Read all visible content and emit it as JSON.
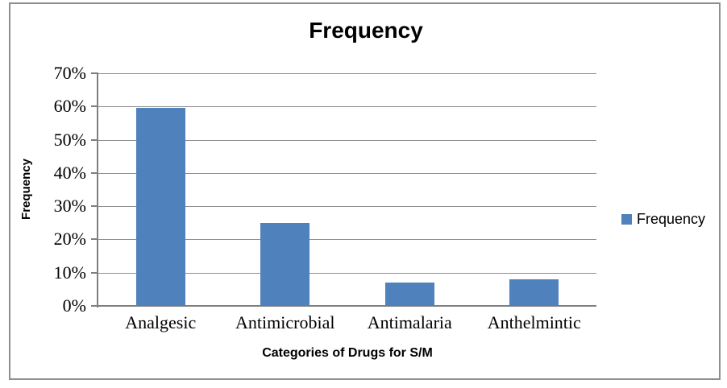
{
  "chart_data": {
    "type": "bar",
    "title": "Frequency",
    "xlabel": "Categories of Drugs for S/M",
    "ylabel": "Frequency",
    "categories": [
      "Analgesic",
      "Antimicrobial",
      "Antimalaria",
      "Anthelmintic"
    ],
    "values": [
      59.7,
      25.0,
      7.0,
      8.0
    ],
    "ylim": [
      0,
      70
    ],
    "ytick_step": 10,
    "ytick_labels": [
      "0%",
      "10%",
      "20%",
      "30%",
      "40%",
      "50%",
      "60%",
      "70%"
    ],
    "grid": true,
    "legend": {
      "position": "right",
      "entries": [
        {
          "label": "Frequency",
          "color": "#4f81bd"
        }
      ]
    },
    "colors": {
      "bar": "#4f81bd",
      "gridline": "#8f8f8f",
      "axis": "#7f7f7f",
      "border": "#8f8f8f",
      "background": "#ffffff",
      "text": "#000000"
    }
  }
}
